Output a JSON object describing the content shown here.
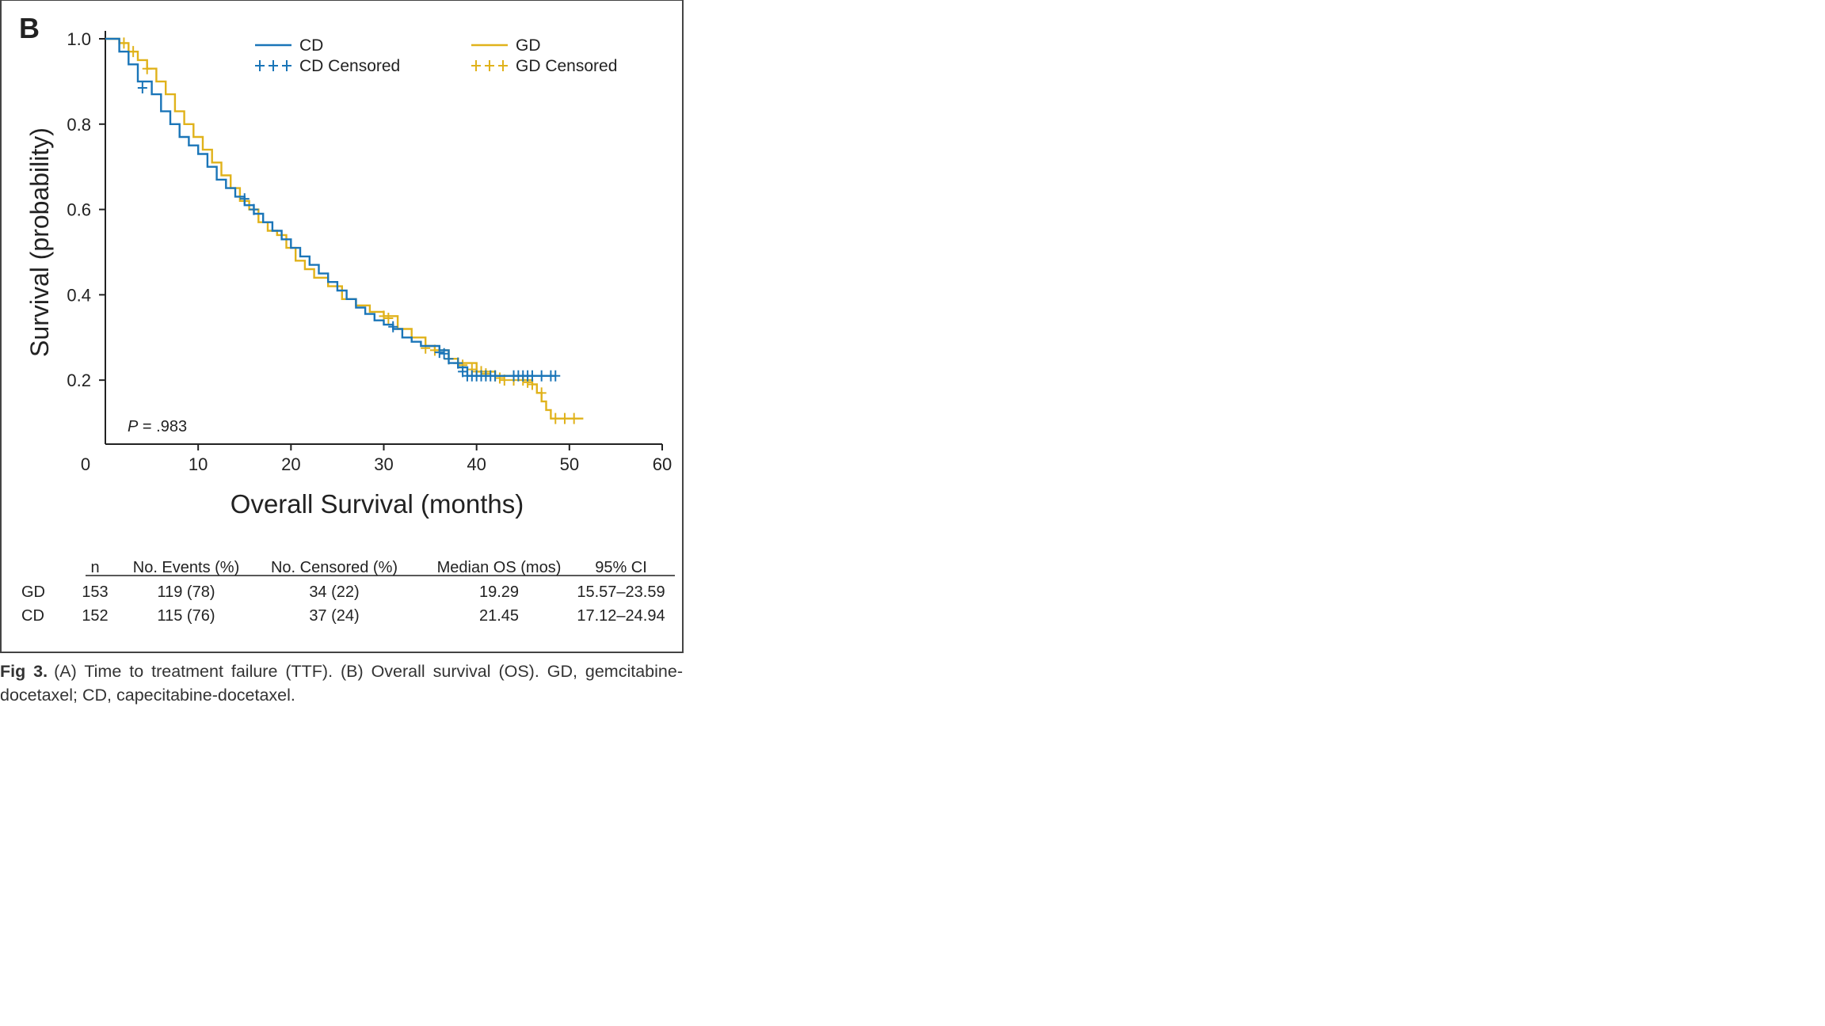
{
  "panel_label": "B",
  "p_value": {
    "prefix": "P",
    "text": " = .983"
  },
  "caption": {
    "label": "Fig 3.",
    "text": "(A) Time to treatment failure (TTF). (B) Overall survival (OS). GD, gemcitabine-docetaxel; CD, capecitabine-docetaxel."
  },
  "colors": {
    "CD": "#1a75b8",
    "GD": "#e0b21b",
    "axis": "#222222",
    "frame": "#444444"
  },
  "chart_data": {
    "type": "line",
    "subtype": "kaplan-meier",
    "title": "",
    "xlabel": "Overall Survival (months)",
    "ylabel": "Survival (probability)",
    "xlim": [
      0,
      60
    ],
    "ylim": [
      0.05,
      1.0
    ],
    "xticks": [
      0,
      10,
      20,
      30,
      40,
      50,
      60
    ],
    "xtick_labels": [
      "0",
      "10",
      "20",
      "30",
      "40",
      "50",
      "60"
    ],
    "yticks": [
      0.2,
      0.4,
      0.6,
      0.8,
      1.0
    ],
    "ytick_labels": [
      "0.2",
      "0.4",
      "0.6",
      "0.8",
      "1.0"
    ],
    "grid": false,
    "legend_position": "top",
    "legend": [
      {
        "label": "CD",
        "series": "CD",
        "kind": "line"
      },
      {
        "label": "GD",
        "series": "GD",
        "kind": "line"
      },
      {
        "label": "CD Censored",
        "series": "CD",
        "kind": "censor"
      },
      {
        "label": "GD Censored",
        "series": "GD",
        "kind": "censor"
      }
    ],
    "series": [
      {
        "name": "CD",
        "color": "#1a75b8",
        "x": [
          0,
          1.5,
          2.5,
          3.5,
          5,
          6,
          7,
          8,
          9,
          10,
          11,
          12,
          13,
          14,
          15,
          16,
          17,
          18,
          19,
          20,
          21,
          22,
          23,
          24,
          25,
          26,
          27,
          28,
          29,
          30,
          31,
          32,
          33,
          34,
          35,
          36,
          37,
          38,
          39,
          40,
          41,
          45,
          48.5
        ],
        "y": [
          1.0,
          0.97,
          0.94,
          0.9,
          0.87,
          0.83,
          0.8,
          0.77,
          0.75,
          0.73,
          0.7,
          0.67,
          0.65,
          0.63,
          0.61,
          0.59,
          0.57,
          0.55,
          0.53,
          0.51,
          0.49,
          0.47,
          0.45,
          0.43,
          0.41,
          0.39,
          0.37,
          0.355,
          0.34,
          0.33,
          0.32,
          0.3,
          0.29,
          0.28,
          0.28,
          0.27,
          0.24,
          0.23,
          0.21,
          0.21,
          0.21,
          0.21,
          0.21
        ],
        "censored_x": [
          4,
          15,
          16,
          31,
          36,
          36.5,
          37,
          38,
          38.5,
          39,
          39.5,
          40,
          40.5,
          41,
          41.5,
          42,
          44,
          44.5,
          45,
          45.5,
          46,
          47,
          48,
          48.5
        ],
        "censored_y": [
          0.885,
          0.625,
          0.6,
          0.325,
          0.265,
          0.262,
          0.25,
          0.24,
          0.22,
          0.21,
          0.21,
          0.21,
          0.21,
          0.21,
          0.21,
          0.21,
          0.21,
          0.21,
          0.21,
          0.21,
          0.21,
          0.21,
          0.21,
          0.21
        ]
      },
      {
        "name": "GD",
        "color": "#e0b21b",
        "x": [
          0,
          1.5,
          2.5,
          3.5,
          4.5,
          5.5,
          6.5,
          7.5,
          8.5,
          9.5,
          10.5,
          11.5,
          12.5,
          13.5,
          14.5,
          15.5,
          16.5,
          17.5,
          18.5,
          19.5,
          20.5,
          21.5,
          22.5,
          24,
          25.5,
          27,
          28.5,
          30,
          31.5,
          33,
          34.5,
          35.5,
          37,
          38,
          40,
          42,
          45,
          46,
          46.5,
          47,
          47.5,
          48,
          51.5
        ],
        "y": [
          1.0,
          0.99,
          0.97,
          0.95,
          0.93,
          0.9,
          0.87,
          0.83,
          0.8,
          0.77,
          0.74,
          0.71,
          0.68,
          0.65,
          0.62,
          0.6,
          0.57,
          0.55,
          0.54,
          0.51,
          0.48,
          0.46,
          0.44,
          0.42,
          0.39,
          0.375,
          0.36,
          0.35,
          0.32,
          0.3,
          0.28,
          0.27,
          0.25,
          0.24,
          0.22,
          0.21,
          0.2,
          0.19,
          0.17,
          0.15,
          0.13,
          0.11,
          0.11
        ],
        "censored_x": [
          2,
          3,
          4.5,
          30,
          30.5,
          34.5,
          35.5,
          37,
          38,
          38.5,
          39.5,
          40,
          40.5,
          41,
          42,
          42.5,
          43,
          44,
          45,
          45.5,
          46,
          47,
          48.5,
          49.5,
          50.5
        ],
        "censored_y": [
          0.99,
          0.97,
          0.93,
          0.35,
          0.345,
          0.275,
          0.27,
          0.25,
          0.24,
          0.235,
          0.225,
          0.22,
          0.22,
          0.215,
          0.21,
          0.205,
          0.2,
          0.2,
          0.2,
          0.195,
          0.19,
          0.17,
          0.11,
          0.11,
          0.11
        ]
      }
    ]
  },
  "table": {
    "headers": [
      "n",
      "No. Events (%)",
      "No. Censored (%)",
      "Median OS (mos)",
      "95% CI"
    ],
    "rows": [
      {
        "group": "GD",
        "cells": [
          "153",
          "119 (78)",
          "34 (22)",
          "19.29",
          "15.57–23.59"
        ]
      },
      {
        "group": "CD",
        "cells": [
          "152",
          "115 (76)",
          "37 (24)",
          "21.45",
          "17.12–24.94"
        ]
      }
    ]
  }
}
